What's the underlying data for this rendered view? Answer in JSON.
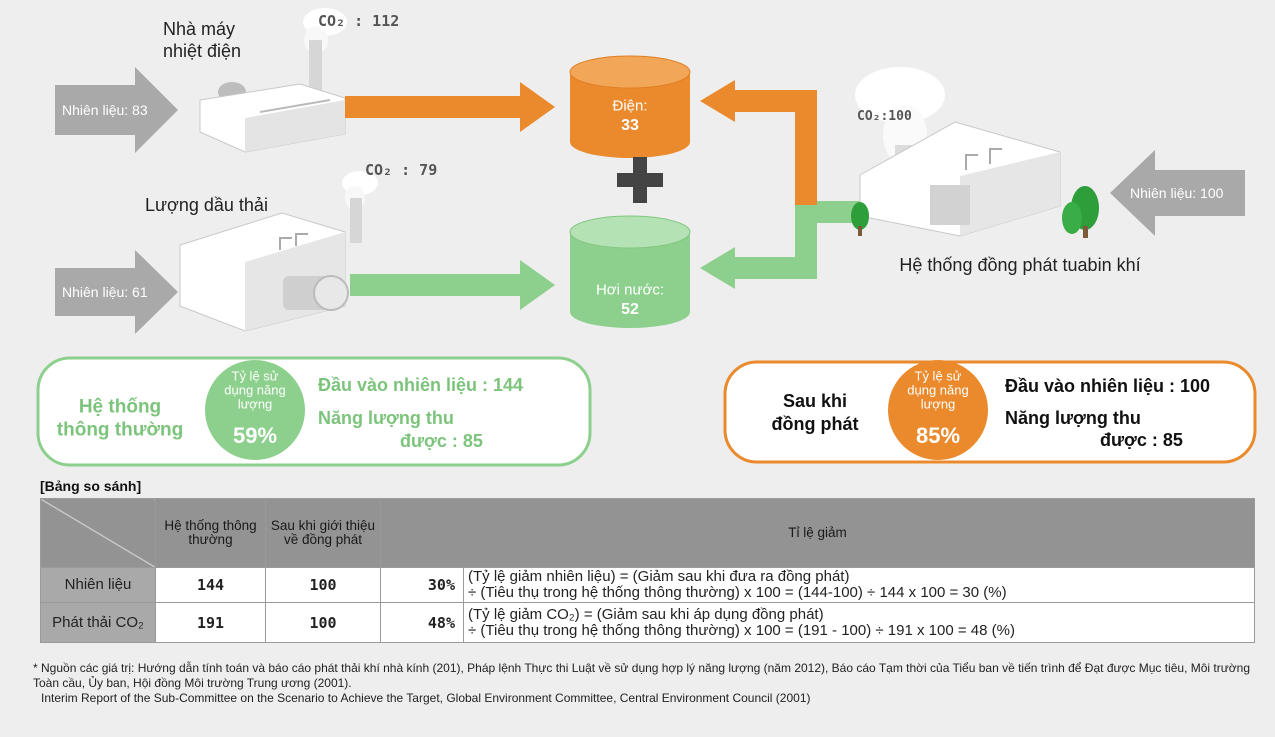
{
  "power_plant": {
    "name_lines": [
      "Nhà máy",
      "nhiệt điện"
    ],
    "co2": "CO₂ : 112",
    "fuel": "Nhiên liệu: 83"
  },
  "waste_oil_boiler": {
    "name": "Lượng dầu thải",
    "co2": "CO₂ : 79",
    "fuel": "Nhiên liệu: 61"
  },
  "electricity": {
    "label": "Điện:",
    "value": "33"
  },
  "steam": {
    "label": "Hơi nước:",
    "value": "52"
  },
  "cogeneration": {
    "name": "Hệ thống đồng phát tuabin khí",
    "co2": "CO₂:100",
    "fuel": "Nhiên liệu: 100"
  },
  "conventional_summary": {
    "title_lines": [
      "Hệ thống",
      "thông thường"
    ],
    "rate_caption_lines": [
      "Tỷ lệ sử",
      "dụng năng",
      "lượng"
    ],
    "rate": "59%",
    "fuel_input": "Đầu vào nhiên liệu : 144",
    "recovered_lines": [
      "Năng lượng thu",
      "được : 85"
    ]
  },
  "cogeneration_summary": {
    "title_lines": [
      "Sau khi",
      "đồng phát"
    ],
    "rate_caption_lines": [
      "Tỷ lệ sử",
      "dụng năng",
      "lượng"
    ],
    "rate": "85%",
    "fuel_input": "Đầu vào nhiên liệu : 100",
    "recovered_lines": [
      "Năng lượng thu",
      "được : 85"
    ]
  },
  "comparison_table": {
    "caption": "[Bảng so sánh]",
    "headers": [
      "Hệ thống thông thường",
      "Sau khi giới thiệu về đồng phát",
      "Tỉ lệ giảm"
    ],
    "rows": [
      {
        "item": "Nhiên liệu",
        "conventional": "144",
        "cogeneration": "100",
        "reduction": "30%",
        "formula_lines": [
          "(Tỷ lệ giảm nhiên liệu) = (Giảm sau khi đưa ra đồng phát)",
          "÷ (Tiêu thụ trong hệ thống thông thường) x 100 = (144-100) ÷ 144 x 100 = 30 (%)"
        ]
      },
      {
        "item": "Phát thải CO₂",
        "conventional": "191",
        "cogeneration": "100",
        "reduction": "48%",
        "formula_lines": [
          "(Tỷ lệ giảm CO₂) = (Giảm sau khi áp dụng đồng phát)",
          "÷ (Tiêu thụ trong hệ thống thông thường) x 100 = (191 - 100) ÷ 191 x 100 = 48 (%)"
        ]
      }
    ]
  },
  "footnote": {
    "source": "* Nguồn các giá trị: Hướng dẫn tính toán và báo cáo phát thải khí nhà kính (201), Pháp lệnh Thực thi Luật về sử dụng hợp lý năng lượng (năm 2012), Báo cáo Tạm thời của Tiểu ban về tiến trình để Đạt được Mục tiêu, Môi trường Toàn cầu, Ủy ban, Hội đồng Môi trường Trung ương (2001).",
    "english": "Interim Report of the Sub-Committee on the Scenario to Achieve the Target, Global Environment Committee, Central Environment Council (2001)"
  }
}
